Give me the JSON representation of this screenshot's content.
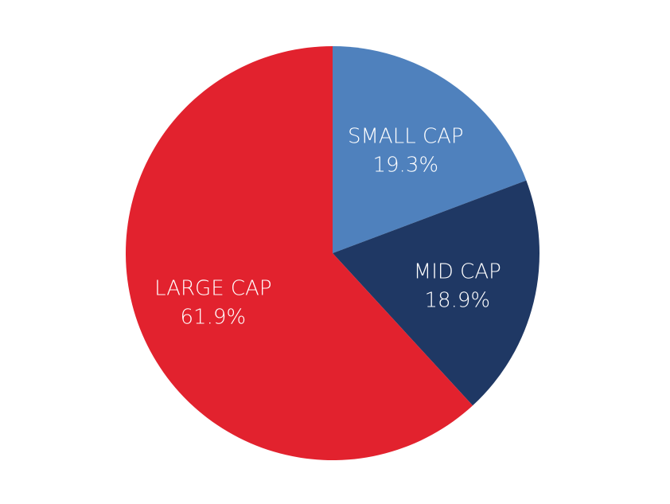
{
  "chart_data": {
    "type": "pie",
    "title": "",
    "start": "12 o'clock",
    "direction": "clockwise",
    "slices": [
      {
        "label": "SMALL CAP",
        "value": 19.3,
        "value_text": "19.3%",
        "color": "#4F81BD"
      },
      {
        "label": "MID CAP",
        "value": 18.9,
        "value_text": "18.9%",
        "color": "#1F3864"
      },
      {
        "label": "LARGE CAP",
        "value": 61.9,
        "value_text": "61.9%",
        "color": "#E2222E"
      }
    ]
  }
}
